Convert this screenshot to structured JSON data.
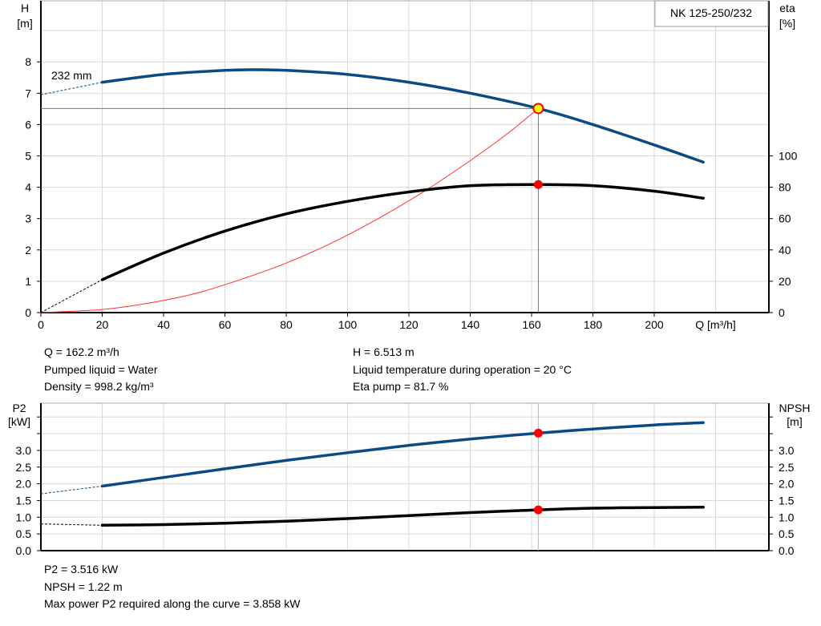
{
  "chart_data": [
    {
      "type": "line",
      "title": "NK 125-250/232",
      "xlabel": "Q [m³/h]",
      "xlim": [
        0,
        237
      ],
      "xticks": [
        0,
        20,
        40,
        60,
        80,
        100,
        120,
        140,
        160,
        180,
        200
      ],
      "ylabel_left": {
        "name": "H",
        "unit": "[m]"
      },
      "ylim_left": [
        0,
        10
      ],
      "yticks_left": [
        0,
        1,
        2,
        3,
        4,
        5,
        6,
        7,
        8
      ],
      "ylabel_right": {
        "name": "eta",
        "unit": "[%]"
      },
      "ylim_right": [
        0,
        200
      ],
      "yticks_right": [
        0,
        20,
        40,
        60,
        80,
        100
      ],
      "grid": true,
      "curve_label": "232 mm",
      "series": [
        {
          "axis": "left",
          "color": "#0b4a85",
          "x": [
            20,
            40,
            60,
            70,
            80,
            100,
            120,
            140,
            162.2,
            180,
            200,
            216
          ],
          "values": [
            7.35,
            7.6,
            7.73,
            7.75,
            7.73,
            7.6,
            7.35,
            7.0,
            6.513,
            6.0,
            5.35,
            4.8
          ],
          "extrapolated": {
            "x": [
              0,
              20
            ],
            "values": [
              6.95,
              7.35
            ]
          }
        },
        {
          "axis": "right",
          "color": "#000000",
          "x": [
            20,
            40,
            60,
            80,
            100,
            120,
            140,
            162.2,
            180,
            200,
            216
          ],
          "values": [
            21,
            38,
            52,
            63,
            71,
            77,
            81,
            81.7,
            81,
            77.5,
            73
          ],
          "extrapolated": {
            "x": [
              0,
              20
            ],
            "values": [
              0,
              21
            ]
          }
        },
        {
          "axis": "left",
          "color": "#ff3030",
          "x": [
            0,
            20,
            35,
            50,
            65,
            80,
            95,
            110,
            125,
            140,
            152,
            162.2
          ],
          "values": [
            0,
            0.1,
            0.3,
            0.6,
            1.05,
            1.58,
            2.23,
            3.0,
            3.87,
            4.85,
            5.7,
            6.513
          ]
        }
      ],
      "operating_point": {
        "Q": 162.2,
        "H": 6.513,
        "eta": 81.7
      }
    },
    {
      "type": "line",
      "xlim": [
        0,
        237
      ],
      "ylabel_left": {
        "name": "P2",
        "unit": "[kW]"
      },
      "ylim_left": [
        0,
        4.5
      ],
      "yticks_left": [
        "0.0",
        "0.5",
        "1.0",
        "1.5",
        "2.0",
        "2.5",
        "3.0"
      ],
      "ylabel_right": {
        "name": "NPSH",
        "unit": "[m]"
      },
      "yticks_right": [
        "0.0",
        "0.5",
        "1.0",
        "1.5",
        "2.0",
        "2.5",
        "3.0"
      ],
      "grid": true,
      "series": [
        {
          "color": "#0b4a85",
          "x": [
            20,
            40,
            60,
            80,
            100,
            120,
            140,
            162.2,
            180,
            200,
            216
          ],
          "values": [
            1.93,
            2.19,
            2.45,
            2.7,
            2.93,
            3.15,
            3.34,
            3.516,
            3.64,
            3.76,
            3.83
          ],
          "extrapolated": {
            "x": [
              0,
              20
            ],
            "values": [
              1.7,
              1.93
            ]
          }
        },
        {
          "color": "#000000",
          "x": [
            20,
            40,
            60,
            80,
            100,
            120,
            140,
            162.2,
            180,
            200,
            216
          ],
          "values": [
            0.76,
            0.78,
            0.82,
            0.88,
            0.96,
            1.05,
            1.14,
            1.22,
            1.27,
            1.29,
            1.3
          ],
          "extrapolated": {
            "x": [
              0,
              20
            ],
            "values": [
              0.8,
              0.76
            ]
          }
        }
      ],
      "operating_point": {
        "Q": 162.2,
        "P2": 3.516,
        "NPSH": 1.22
      }
    }
  ],
  "info_top": {
    "q": "Q = 162.2 m³/h",
    "liquid": "Pumped liquid = Water",
    "density": "Density = 998.2 kg/m³",
    "h": "H = 6.513 m",
    "temp": "Liquid temperature during operation = 20 °C",
    "eta": "Eta pump = 81.7 %"
  },
  "info_bottom": {
    "p2": "P2 = 3.516 kW",
    "npsh": "NPSH = 1.22 m",
    "maxp2": "Max power P2 required along the curve = 3.858 kW"
  },
  "colors": {
    "grid": "#d9d9d9",
    "head": "#0b4a85",
    "marker": "#ff0000",
    "marker_fill_op": "#ffff00"
  }
}
